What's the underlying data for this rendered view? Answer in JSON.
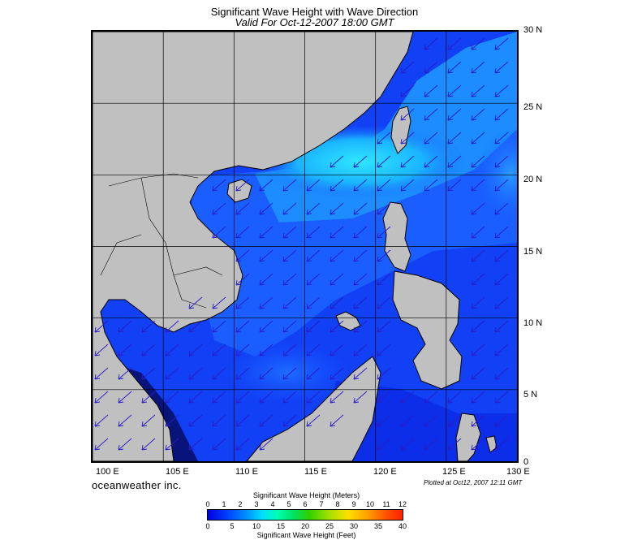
{
  "title": "Significant Wave Height with Wave Direction",
  "subtitle": "Valid For Oct-12-2007 18:00 GMT",
  "lat_labels": [
    "30 N",
    "25 N",
    "20 N",
    "15 N",
    "10 N",
    "5 N",
    "0"
  ],
  "lon_labels": [
    "100 E",
    "105 E",
    "110 E",
    "115 E",
    "120 E",
    "125 E",
    "130 E"
  ],
  "brand": "oceanweather inc.",
  "plotted": "Plotted at Oct12, 2007 12:11 GMT",
  "colorbar": {
    "title_meters": "Significant Wave Height (Meters)",
    "title_feet": "Significant Wave Height (Feet)",
    "meter_ticks": [
      "0",
      "1",
      "2",
      "3",
      "4",
      "5",
      "6",
      "7",
      "8",
      "9",
      "10",
      "11",
      "12"
    ],
    "feet_ticks": [
      "0",
      "5",
      "10",
      "15",
      "20",
      "25",
      "30",
      "35",
      "40"
    ]
  },
  "colors": {
    "land": "#c0c0c0",
    "sea_low": "#0a1de6",
    "sea_mid": "#1a6cff",
    "sea_high": "#26d8ff",
    "coast": "#000000",
    "arrow": "#2a1cc8"
  },
  "wave_direction": "southwest"
}
